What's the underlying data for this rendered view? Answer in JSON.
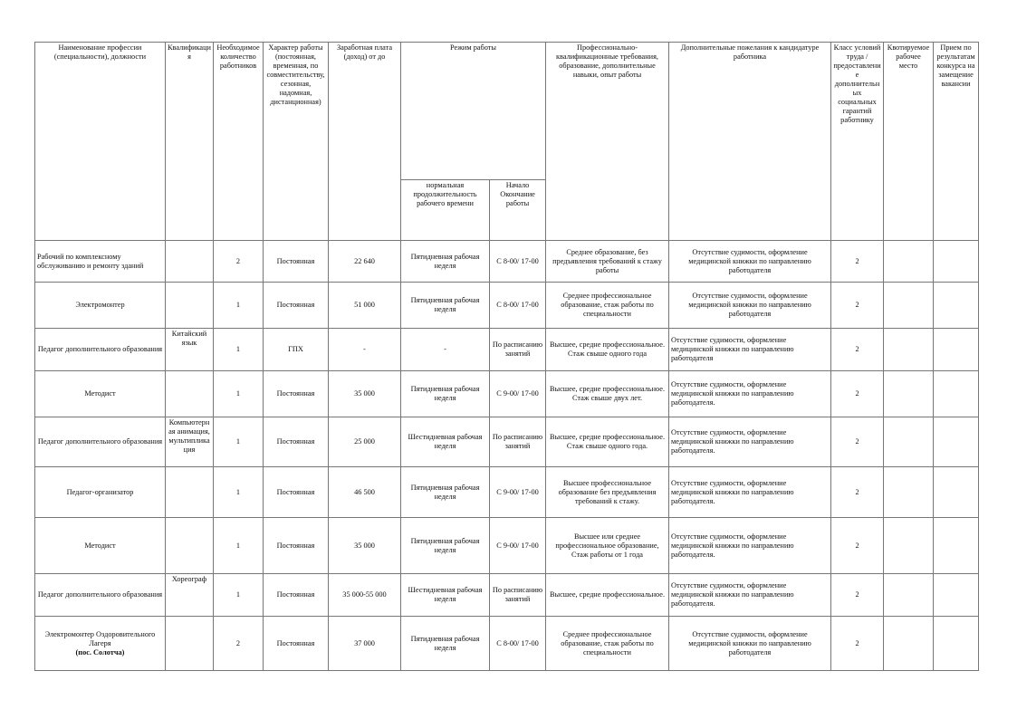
{
  "headers": {
    "name": "Наименование профессии (специальности), должности",
    "qualification": "Квалификация",
    "count": "Необходимое количество работников",
    "nature": "Характер работы (постоянная, временная, по совместительству, сезонная, надомная, дистанционная)",
    "salary": "Заработная плата (доход) от до",
    "mode": "Режим работы",
    "mode_duration": "нормальная продолжительность рабочего времени",
    "mode_hours": "Начало Окончание работы",
    "requirements": "Профессионально-квалификационные требования, образование, дополнительные навыки, опыт работы",
    "wishes": "Дополнительные пожелания к кандидатуре работника",
    "conditions": "Класс условий труда /предоставление дополнительных социальных гарантий работнику",
    "quota": "Квотируемое рабочее место",
    "contest": "Прием по результатам конкурса на замещение вакансии"
  },
  "rows": [
    {
      "name": "Рабочий по комплексному обслуживанию и ремонту зданий",
      "qual": "",
      "count": "2",
      "nature": "Постоянная",
      "salary": "22 640",
      "duration": "Пятидневная рабочая неделя",
      "hours": "С 8-00/ 17-00",
      "req": "Среднее образование, без предъявления требований к стажу работы",
      "wish": "Отсутствие судимости, оформление медицинской книжки по направлению работодателя",
      "cls": "2",
      "quota": "",
      "contest": ""
    },
    {
      "name": "Электромонтер",
      "qual": "",
      "count": "1",
      "nature": "Постоянная",
      "salary": "51 000",
      "duration": "Пятидневная рабочая неделя",
      "hours": "С 8-00/ 17-00",
      "req": "Среднее профессиональное образование, стаж работы по специальности",
      "wish": "Отсутствие судимости, оформление медицинской книжки по направлению работодателя",
      "cls": "2",
      "quota": "",
      "contest": ""
    },
    {
      "name": "Педагог дополнительного образования",
      "qual": "Китайский язык",
      "count": "1",
      "nature": "ГПХ",
      "salary": "-",
      "duration": "-",
      "hours": "По расписанию занятий",
      "req": "Высшее, средне профессиональное. Стаж свыше одного года",
      "wish": "Отсутствие судимости, оформление медицинской книжки по направлению работодателя",
      "cls": "2",
      "quota": "",
      "contest": ""
    },
    {
      "name": "Методист",
      "qual": "",
      "count": "1",
      "nature": "Постоянная",
      "salary": "35 000",
      "duration": "Пятидневная рабочая неделя",
      "hours": "С 9-00/ 17-00",
      "req": "Высшее, средне профессиональное. Стаж свыше двух лет.",
      "wish": "Отсутствие судимости, оформление медицинской книжки по направлению работодателя.",
      "cls": "2",
      "quota": "",
      "contest": ""
    },
    {
      "name": "Педагог дополнительного образования",
      "qual": "Компьютерная анимация, мультипликация",
      "count": "1",
      "nature": "Постоянная",
      "salary": "25 000",
      "duration": "Шестидневная рабочая неделя",
      "hours": "По расписанию занятий",
      "req": "Высшее, средне профессиональное. Стаж свыше одного года.",
      "wish": "Отсутствие судимости, оформление медицинской книжки по направлению работодателя.",
      "cls": "2",
      "quota": "",
      "contest": ""
    },
    {
      "name": "Педагог-организатор",
      "qual": "",
      "count": "1",
      "nature": "Постоянная",
      "salary": "46 500",
      "duration": "Пятидневная рабочая неделя",
      "hours": "С 9-00/ 17-00",
      "req": "Высшее профессиональное образование без предъявления требований к стажу.",
      "wish": "Отсутствие судимости, оформление медицинской книжки по направлению работодателя.",
      "cls": "2",
      "quota": "",
      "contest": ""
    },
    {
      "name": "Методист",
      "qual": "",
      "count": "1",
      "nature": "Постоянная",
      "salary": "35 000",
      "duration": "Пятидневная рабочая неделя",
      "hours": "С 9-00/ 17-00",
      "req": "Высшее или среднее профессиональное образование, Стаж работы от 1 года",
      "wish": "Отсутствие судимости, оформление медицинской книжки по направлению работодателя.",
      "cls": "2",
      "quota": "",
      "contest": ""
    },
    {
      "name": "Педагог дополнительного образования",
      "qual": "Хореограф",
      "count": "1",
      "nature": "Постоянная",
      "salary": "35 000-55 000",
      "duration": "Шестидневная рабочая неделя",
      "hours": "По расписанию занятий",
      "req": "Высшее, средне профессиональное.",
      "wish": "Отсутствие судимости, оформление медицинской книжки по направлению работодателя.",
      "cls": "2",
      "quota": "",
      "contest": ""
    },
    {
      "name": "Электромонтер Оздоровительного Лагеря",
      "name_bold": "(пос. Солотча)",
      "qual": "",
      "count": "2",
      "nature": "Постоянная",
      "salary": "37 000",
      "duration": "Пятидневная рабочая неделя",
      "hours": "С 8-00/ 17-00",
      "req": "Среднее профессиональное образование, стаж работы по специальности",
      "wish": "Отсутствие судимости, оформление медицинской книжки по направлению работодателя",
      "cls": "2",
      "quota": "",
      "contest": ""
    }
  ]
}
